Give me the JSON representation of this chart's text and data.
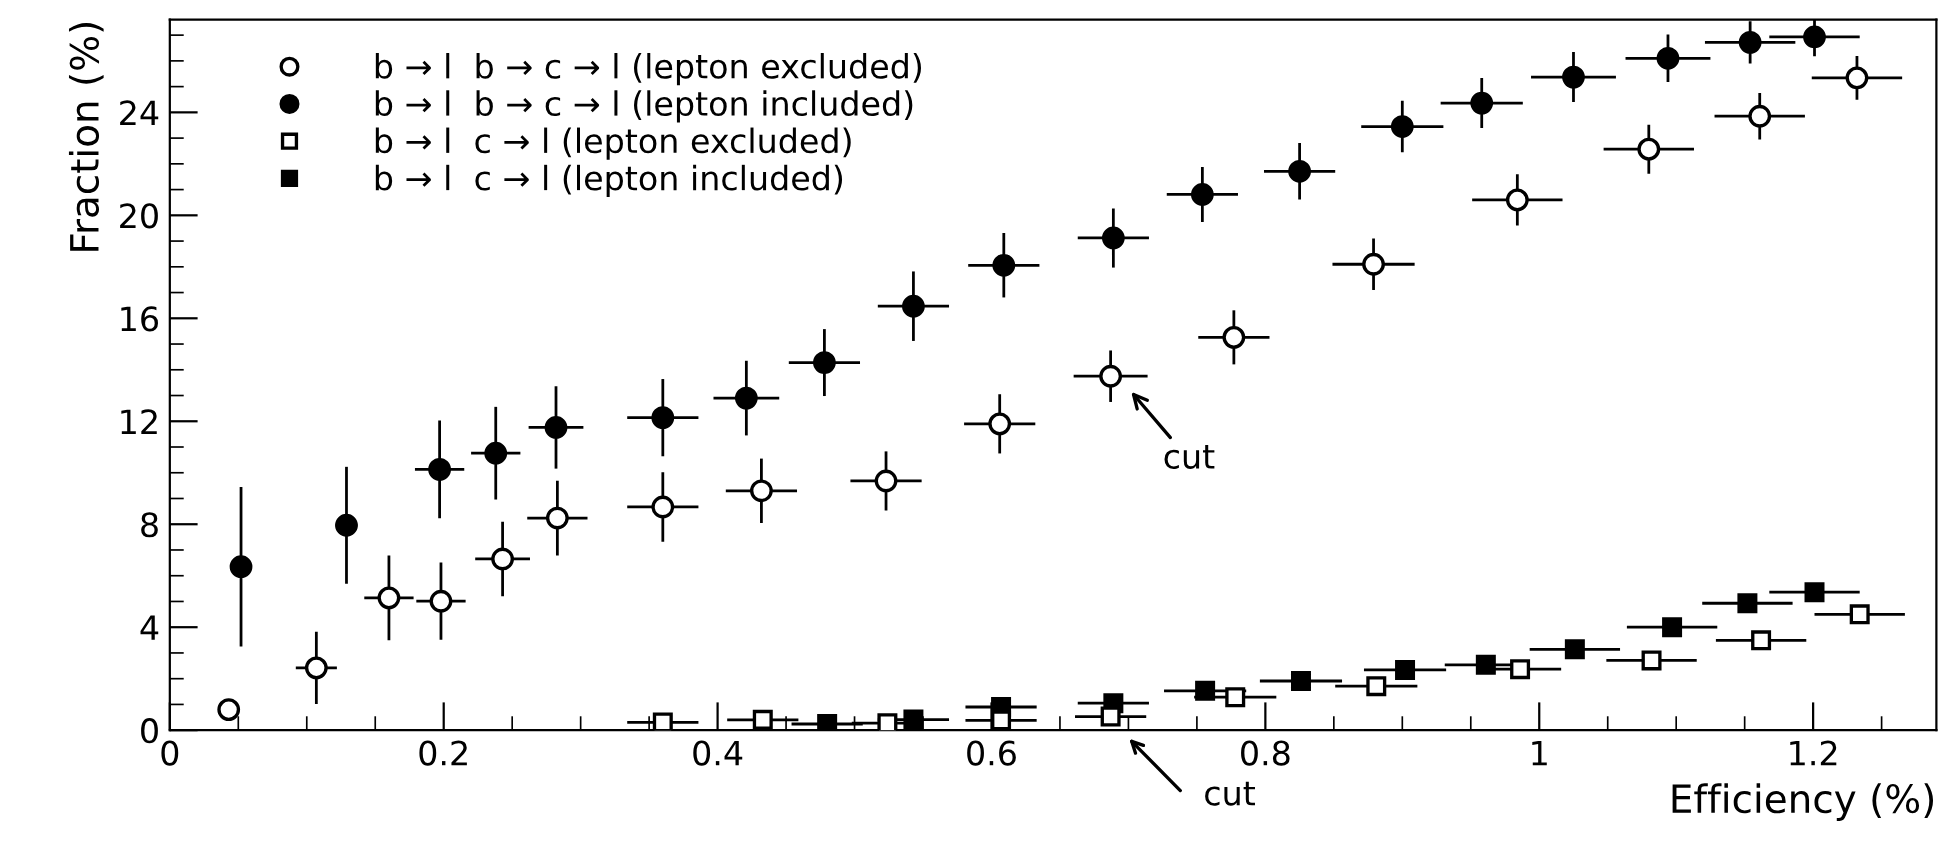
{
  "chart_data": {
    "type": "scatter",
    "xlabel": "Efficiency (%)",
    "ylabel": "Fraction (%)",
    "xlim": [
      0,
      1.29
    ],
    "ylim": [
      0,
      27.6
    ],
    "xticks": [
      0,
      0.2,
      0.4,
      0.6,
      0.8,
      1,
      1.2
    ],
    "yticks": [
      0,
      4,
      8,
      12,
      16,
      20,
      24
    ],
    "grid": false,
    "legend": "top left",
    "series": [
      {
        "name": "b → l  b → c → l (lepton excluded)",
        "color": "#ffffff",
        "marker": "circle",
        "x": [
          0.043,
          0.107,
          0.16,
          0.198,
          0.243,
          0.283,
          0.36,
          0.432,
          0.523,
          0.606,
          0.687,
          0.777,
          0.879,
          0.984,
          1.08,
          1.161,
          1.232
        ],
        "values": [
          0.8,
          2.42,
          5.14,
          5.01,
          6.65,
          8.24,
          8.67,
          9.3,
          9.68,
          11.9,
          13.75,
          15.26,
          18.1,
          20.6,
          22.57,
          23.85,
          25.34
        ],
        "errors": [
          null,
          1.4,
          1.65,
          1.5,
          1.45,
          1.45,
          1.35,
          1.25,
          1.15,
          1.15,
          1.0,
          1.05,
          1.0,
          1.0,
          0.95,
          0.9,
          0.85
        ],
        "xerrors": [
          null,
          0.015,
          0.018,
          0.018,
          0.02,
          0.022,
          0.026,
          0.026,
          0.026,
          0.026,
          0.027,
          0.026,
          0.03,
          0.033,
          0.033,
          0.033,
          0.033
        ]
      },
      {
        "name": "b → l  b → c → l (lepton included)",
        "color": "#000000",
        "marker": "circle",
        "x": [
          0.052,
          0.129,
          0.197,
          0.238,
          0.282,
          0.36,
          0.421,
          0.478,
          0.543,
          0.609,
          0.689,
          0.754,
          0.825,
          0.9,
          0.958,
          1.025,
          1.094,
          1.154,
          1.201
        ],
        "values": [
          6.35,
          7.96,
          10.13,
          10.76,
          11.76,
          12.14,
          12.9,
          14.28,
          16.47,
          18.06,
          19.12,
          20.81,
          21.71,
          23.45,
          24.36,
          25.37,
          26.1,
          26.72,
          26.93
        ],
        "errors": [
          3.1,
          2.27,
          1.9,
          1.8,
          1.6,
          1.5,
          1.45,
          1.3,
          1.35,
          1.25,
          1.15,
          1.07,
          1.1,
          1.0,
          0.97,
          0.97,
          0.92,
          0.82,
          0.75
        ],
        "xerrors": [
          null,
          0.008,
          0.018,
          0.018,
          0.02,
          0.026,
          0.024,
          0.026,
          0.026,
          0.026,
          0.026,
          0.026,
          0.026,
          0.03,
          0.03,
          0.031,
          0.031,
          0.033,
          0.033
        ]
      },
      {
        "name": "b → l  c → l (lepton excluded)",
        "color": "#ffffff",
        "marker": "square",
        "x": [
          0.36,
          0.433,
          0.524,
          0.607,
          0.687,
          0.778,
          0.881,
          0.986,
          1.082,
          1.162,
          1.234
        ],
        "values": [
          0.3,
          0.4,
          0.27,
          0.38,
          0.53,
          1.28,
          1.71,
          2.37,
          2.71,
          3.49,
          4.5
        ],
        "xerrors": [
          0.026,
          0.026,
          0.026,
          0.026,
          0.026,
          0.03,
          0.03,
          0.03,
          0.033,
          0.033,
          0.033
        ]
      },
      {
        "name": "b → l  c → l (lepton included)",
        "color": "#000000",
        "marker": "square",
        "x": [
          0.48,
          0.543,
          0.607,
          0.689,
          0.756,
          0.826,
          0.902,
          0.961,
          1.026,
          1.097,
          1.152,
          1.201
        ],
        "values": [
          0.24,
          0.41,
          0.9,
          1.05,
          1.53,
          1.91,
          2.34,
          2.54,
          3.14,
          4.0,
          4.93,
          5.36
        ],
        "xerrors": [
          0.026,
          0.026,
          0.026,
          0.026,
          0.03,
          0.03,
          0.03,
          0.03,
          0.033,
          0.033,
          0.033,
          0.033
        ]
      }
    ],
    "annotations": [
      {
        "text": "cut",
        "x": 0.69,
        "y": 13.75
      },
      "cut"
    ]
  }
}
